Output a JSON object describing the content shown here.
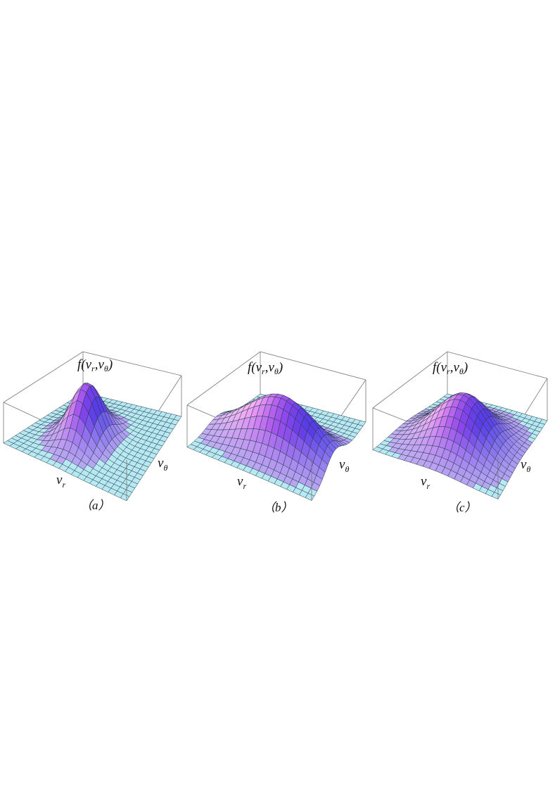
{
  "figure": {
    "panels": [
      {
        "z_label": {
          "parts": [
            "f(v",
            ",v",
            ")"
          ],
          "subscripts": [
            "r",
            "θ"
          ]
        },
        "x_label": {
          "base": "v",
          "subscript": "r"
        },
        "y_label": {
          "base": "v",
          "subscript": "θ"
        },
        "caption": "（a）"
      },
      {
        "z_label": {
          "parts": [
            "f(v",
            ",v",
            ")"
          ],
          "subscripts": [
            "r",
            "θ"
          ]
        },
        "x_label": {
          "base": "v",
          "subscript": "r"
        },
        "y_label": {
          "base": "v",
          "subscript": "θ"
        },
        "caption": "（b）"
      },
      {
        "z_label": {
          "parts": [
            "f(v",
            ",v",
            ")"
          ],
          "subscripts": [
            "r",
            "θ"
          ]
        },
        "x_label": {
          "base": "v",
          "subscript": "r"
        },
        "y_label": {
          "base": "v",
          "subscript": "θ"
        },
        "caption": "（c）"
      }
    ]
  }
}
